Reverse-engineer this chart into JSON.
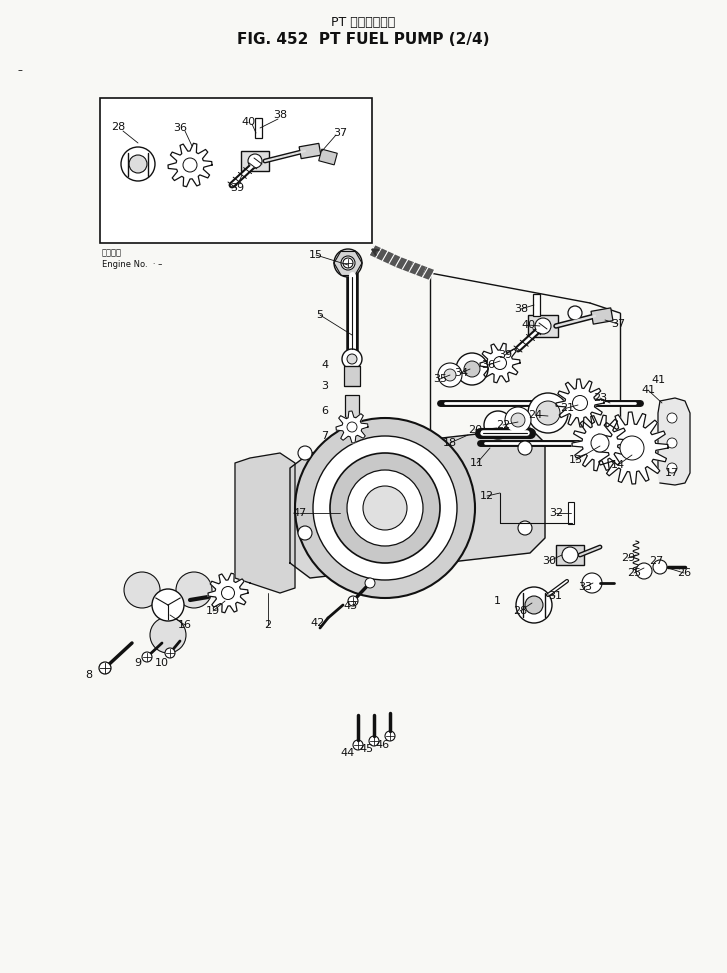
{
  "title_japanese": "PT フェルポンプ",
  "title_english": "FIG. 452  PT FUEL PUMP (2/4)",
  "bg": "#f8f8f5",
  "lc": "#111111",
  "tc": "#111111",
  "fw": 7.27,
  "fh": 9.73,
  "engine_jp": "適用機種",
  "engine_en": "Engine No.  · –"
}
